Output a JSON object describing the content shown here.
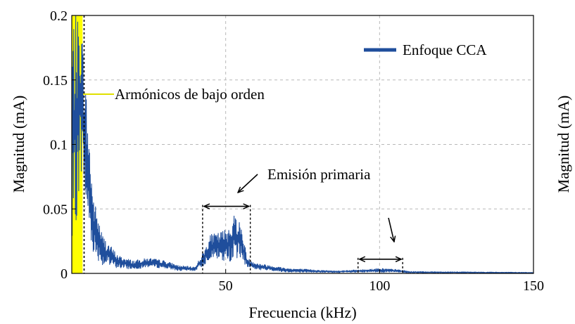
{
  "chart_data": {
    "type": "line",
    "xlabel": "Frecuencia (kHz)",
    "ylabel": "Magnitud (mA)",
    "ylabel_right": "Magnitud (mA)",
    "xlim": [
      0,
      150
    ],
    "ylim": [
      0,
      0.2
    ],
    "x_ticks": [
      50,
      100,
      150
    ],
    "x_tick_labels": [
      "50",
      "100",
      "150"
    ],
    "y_ticks": [
      0,
      0.05,
      0.1,
      0.15,
      0.2
    ],
    "y_tick_labels": [
      "0",
      "0.05",
      "0.1",
      "0.15",
      "0.2"
    ],
    "grid": true,
    "legend_position": "top-right",
    "series": [
      {
        "name": "Enfoque CCA",
        "color": "#1f4e9c",
        "envelope": [
          {
            "x": 0.0,
            "low": 0.0,
            "high": 0.2
          },
          {
            "x": 3.0,
            "low": 0.08,
            "high": 0.2
          },
          {
            "x": 5.0,
            "low": 0.04,
            "high": 0.13
          },
          {
            "x": 7.0,
            "low": 0.015,
            "high": 0.06
          },
          {
            "x": 10.0,
            "low": 0.006,
            "high": 0.03
          },
          {
            "x": 15.0,
            "low": 0.004,
            "high": 0.014
          },
          {
            "x": 20.0,
            "low": 0.003,
            "high": 0.01
          },
          {
            "x": 25.0,
            "low": 0.005,
            "high": 0.012
          },
          {
            "x": 30.0,
            "low": 0.004,
            "high": 0.01
          },
          {
            "x": 35.0,
            "low": 0.002,
            "high": 0.006
          },
          {
            "x": 40.0,
            "low": 0.002,
            "high": 0.005
          },
          {
            "x": 43.0,
            "low": 0.006,
            "high": 0.018
          },
          {
            "x": 45.0,
            "low": 0.012,
            "high": 0.03
          },
          {
            "x": 48.0,
            "low": 0.01,
            "high": 0.032
          },
          {
            "x": 50.0,
            "low": 0.008,
            "high": 0.035
          },
          {
            "x": 52.0,
            "low": 0.01,
            "high": 0.04
          },
          {
            "x": 53.0,
            "low": 0.012,
            "high": 0.048
          },
          {
            "x": 55.0,
            "low": 0.01,
            "high": 0.038
          },
          {
            "x": 57.0,
            "low": 0.005,
            "high": 0.012
          },
          {
            "x": 60.0,
            "low": 0.003,
            "high": 0.008
          },
          {
            "x": 70.0,
            "low": 0.001,
            "high": 0.004
          },
          {
            "x": 85.0,
            "low": 0.0006,
            "high": 0.002
          },
          {
            "x": 95.0,
            "low": 0.0008,
            "high": 0.003
          },
          {
            "x": 100.0,
            "low": 0.001,
            "high": 0.004
          },
          {
            "x": 106.0,
            "low": 0.0008,
            "high": 0.003
          },
          {
            "x": 110.0,
            "low": 0.0004,
            "high": 0.0015
          },
          {
            "x": 150.0,
            "low": 0.0002,
            "high": 0.0008
          }
        ]
      }
    ],
    "highlight_band": {
      "x_start": 0.0,
      "x_end": 3.5,
      "color": "#ffff00"
    },
    "annotations": [
      {
        "text": "Armónicos de bajo orden",
        "color": "#d4d400"
      },
      {
        "text": "Emisión primaria",
        "color": "#000000"
      }
    ],
    "interval_markers": [
      {
        "x_start": 42.5,
        "x_end": 58.0,
        "y": 0.052
      },
      {
        "x_start": 93.0,
        "x_end": 107.5,
        "y": 0.011
      }
    ],
    "dashed_markers_x": [
      4.0
    ]
  }
}
